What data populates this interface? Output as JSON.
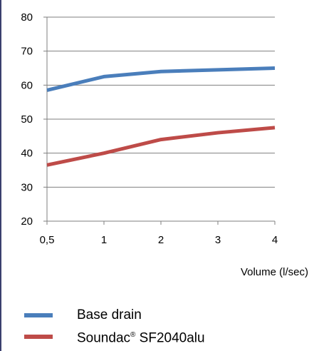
{
  "chart_data": {
    "type": "line",
    "categories": [
      "0,5",
      "1",
      "2",
      "3",
      "4"
    ],
    "series": [
      {
        "name": "Base drain",
        "color": "#4a7ebb",
        "values": [
          58.5,
          62.5,
          64,
          64.5,
          65
        ]
      },
      {
        "name": "Soundac® SF2040alu",
        "color": "#be4b48",
        "values": [
          36.5,
          40,
          44,
          46,
          47.5
        ]
      }
    ],
    "xlabel": "Volume (l/sec)",
    "ylabel": "",
    "ylim": [
      20,
      80
    ],
    "yticks": [
      "20",
      "30",
      "40",
      "50",
      "60",
      "70",
      "80"
    ],
    "grid": true,
    "legend_position": "bottom"
  },
  "legend": {
    "items": [
      {
        "label": "Base drain"
      },
      {
        "label_main": "Soundac",
        "label_mark": "®",
        "label_rest": " SF2040alu"
      }
    ]
  }
}
